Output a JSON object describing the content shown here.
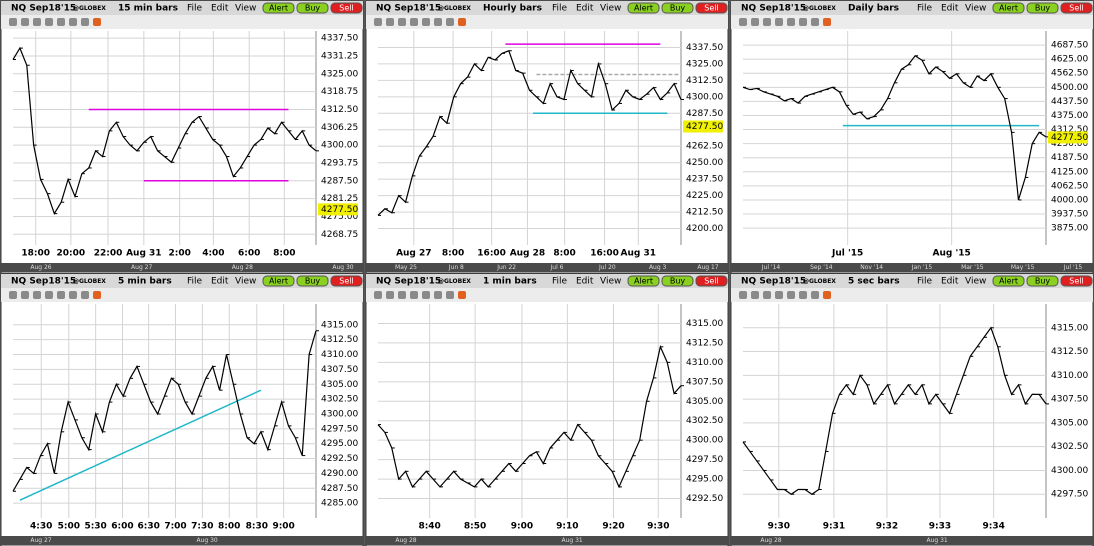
{
  "panels": [
    {
      "symbol": "NQ Sep18'15",
      "exchange": "@GLOBEX",
      "interval": "15 min bars",
      "menu": [
        "File",
        "Edit",
        "View"
      ],
      "buttons": [
        "Alert",
        "Buy",
        "Sell"
      ],
      "chart": {
        "type": "line",
        "color": "#000000",
        "xlim": [
          0,
          44
        ],
        "ylim": [
          4265,
          4340
        ],
        "yticks": [
          {
            "value": 4337.5,
            "label": "4337.50"
          },
          {
            "value": 4331.25,
            "label": "4331.25"
          },
          {
            "value": 4325,
            "label": "4325.00"
          },
          {
            "value": 4318.75,
            "label": "4318.75"
          },
          {
            "value": 4312.5,
            "label": "4312.50"
          },
          {
            "value": 4306.25,
            "label": "4306.25"
          },
          {
            "value": 4300,
            "label": "4300.00"
          },
          {
            "value": 4293.75,
            "label": "4293.75"
          },
          {
            "value": 4287.5,
            "label": "4287.50"
          },
          {
            "value": 4281.25,
            "label": "4281.25"
          },
          {
            "value": 4275,
            "label": "4275.00"
          },
          {
            "value": 4268.75,
            "label": "4268.75"
          }
        ],
        "xticks": [
          {
            "value": 3.3,
            "label": "18:00"
          },
          {
            "value": 8.4,
            "label": "20:00"
          },
          {
            "value": 13.8,
            "label": "22:00"
          },
          {
            "value": 19,
            "label": "Aug 31"
          },
          {
            "value": 24.2,
            "label": "2:00"
          },
          {
            "value": 29.1,
            "label": "4:00"
          },
          {
            "value": 34.3,
            "label": "6:00"
          },
          {
            "value": 39.4,
            "label": "8:00"
          }
        ],
        "values": [
          4330,
          4334,
          4328,
          4300,
          4288,
          4283,
          4276,
          4280,
          4288,
          4282,
          4290,
          4292,
          4298,
          4296,
          4305,
          4308,
          4303,
          4300,
          4298,
          4301,
          4303,
          4298,
          4296,
          4294,
          4299,
          4304,
          4308,
          4310,
          4306,
          4302,
          4300,
          4296,
          4289,
          4292,
          4296,
          4300,
          4302,
          4306,
          4304,
          4308,
          4305,
          4302,
          4305,
          4300,
          4298
        ],
        "price_label": {
          "value": 4277.5,
          "label": "4277.50"
        },
        "lines": [
          {
            "color": "#e000e0",
            "points": [
              [
                11,
                4312.5
              ],
              [
                40,
                4312.5
              ]
            ]
          },
          {
            "color": "#e000e0",
            "points": [
              [
                19,
                4287.5
              ],
              [
                40,
                4287.5
              ]
            ]
          }
        ],
        "scroll_labels": [
          "Aug 26",
          "Aug 27",
          "Aug 28",
          "Aug 30"
        ]
      }
    },
    {
      "symbol": "NQ Sep18'15",
      "exchange": "@GLOBEX",
      "interval": "Hourly bars",
      "menu": [
        "File",
        "Edit",
        "View"
      ],
      "buttons": [
        "Alert",
        "Buy",
        "Sell"
      ],
      "chart": {
        "type": "line",
        "color": "#000000",
        "xlim": [
          0,
          44
        ],
        "ylim": [
          4187.5,
          4350
        ],
        "yticks": [
          {
            "value": 4337.5,
            "label": "4337.50"
          },
          {
            "value": 4325,
            "label": "4325.00"
          },
          {
            "value": 4312.5,
            "label": "4312.50"
          },
          {
            "value": 4300,
            "label": "4300.00"
          },
          {
            "value": 4287.5,
            "label": "4287.50"
          },
          {
            "value": 4275,
            "label": "4275.00"
          },
          {
            "value": 4262.5,
            "label": "4262.50"
          },
          {
            "value": 4250,
            "label": "4250.00"
          },
          {
            "value": 4237.5,
            "label": "4237.50"
          },
          {
            "value": 4225,
            "label": "4225.00"
          },
          {
            "value": 4212.5,
            "label": "4212.50"
          },
          {
            "value": 4200,
            "label": "4200.00"
          }
        ],
        "xticks": [
          {
            "value": 5.2,
            "label": "Aug 27"
          },
          {
            "value": 10.9,
            "label": "8:00"
          },
          {
            "value": 16.5,
            "label": "16:00"
          },
          {
            "value": 21.7,
            "label": "Aug 28"
          },
          {
            "value": 27.1,
            "label": "8:00"
          },
          {
            "value": 32.9,
            "label": "16:00"
          },
          {
            "value": 37.8,
            "label": "Aug 31"
          }
        ],
        "values": [
          4210,
          4215,
          4212,
          4225,
          4220,
          4240,
          4255,
          4262,
          4270,
          4285,
          4280,
          4300,
          4310,
          4315,
          4325,
          4320,
          4330,
          4328,
          4333,
          4335,
          4320,
          4318,
          4305,
          4300,
          4295,
          4310,
          4300,
          4298,
          4320,
          4310,
          4305,
          4300,
          4325,
          4310,
          4290,
          4295,
          4305,
          4300,
          4298,
          4302,
          4307,
          4298,
          4303,
          4310,
          4298
        ],
        "price_label": {
          "value": 4277.5,
          "label": "4277.50"
        },
        "lines": [
          {
            "color": "#e000e0",
            "points": [
              [
                18.5,
                4340
              ],
              [
                41,
                4340
              ]
            ]
          },
          {
            "color": "#aaaaaa",
            "dashed": true,
            "points": [
              [
                23,
                4317
              ],
              [
                44,
                4317
              ]
            ]
          },
          {
            "color": "#20b8c8",
            "points": [
              [
                22.5,
                4287.5
              ],
              [
                42,
                4287.5
              ]
            ]
          }
        ],
        "scroll_labels": [
          "May 25",
          "Jun 8",
          "Jun 22",
          "Jul 6",
          "Jul 20",
          "Aug 3",
          "Aug 17"
        ]
      }
    },
    {
      "symbol": "NQ Sep18'15",
      "exchange": "@GLOBEX",
      "interval": "Daily bars",
      "menu": [
        "File",
        "Edit",
        "View"
      ],
      "buttons": [
        "Alert",
        "Buy",
        "Sell"
      ],
      "chart": {
        "type": "line",
        "color": "#000000",
        "xlim": [
          0,
          44
        ],
        "ylim": [
          3800,
          4750
        ],
        "yticks": [
          {
            "value": 4687.5,
            "label": "4687.50"
          },
          {
            "value": 4625,
            "label": "4625.00"
          },
          {
            "value": 4562.5,
            "label": "4562.50"
          },
          {
            "value": 4500,
            "label": "4500.00"
          },
          {
            "value": 4437.5,
            "label": "4437.50"
          },
          {
            "value": 4375,
            "label": "4375.00"
          },
          {
            "value": 4312.5,
            "label": "4312.50"
          },
          {
            "value": 4250,
            "label": "4250.00"
          },
          {
            "value": 4187.5,
            "label": "4187.50"
          },
          {
            "value": 4125,
            "label": "4125.00"
          },
          {
            "value": 4062.5,
            "label": "4062.50"
          },
          {
            "value": 4000,
            "label": "4000.00"
          },
          {
            "value": 3937.5,
            "label": "3937.50"
          },
          {
            "value": 3875,
            "label": "3875.00"
          }
        ],
        "xticks": [
          {
            "value": 15.2,
            "label": "Jul '15"
          },
          {
            "value": 30.3,
            "label": "Aug '15"
          }
        ],
        "values": [
          4500,
          4490,
          4495,
          4480,
          4470,
          4460,
          4440,
          4450,
          4430,
          4460,
          4470,
          4480,
          4490,
          4500,
          4480,
          4420,
          4380,
          4390,
          4360,
          4370,
          4400,
          4450,
          4520,
          4580,
          4600,
          4640,
          4620,
          4560,
          4590,
          4570,
          4540,
          4560,
          4520,
          4500,
          4550,
          4530,
          4560,
          4500,
          4450,
          4300,
          4000,
          4100,
          4250,
          4300,
          4280
        ],
        "price_label": {
          "value": 4277.5,
          "label": "4277.50"
        },
        "lines": [
          {
            "color": "#20b8c8",
            "points": [
              [
                14.5,
                4330
              ],
              [
                43,
                4330
              ]
            ]
          }
        ],
        "scroll_labels": [
          "Jul '14",
          "Sep '14",
          "Nov '14",
          "Jan '15",
          "Mar '15",
          "May '15",
          "Jul '15"
        ]
      }
    },
    {
      "symbol": "NQ Sep18'15",
      "exchange": "@GLOBEX",
      "interval": "5 min bars",
      "menu": [
        "File",
        "Edit",
        "View"
      ],
      "buttons": [
        "Alert",
        "Buy",
        "Sell"
      ],
      "chart": {
        "type": "line",
        "color": "#000000",
        "xlim": [
          0,
          44
        ],
        "ylim": [
          4282.5,
          4318.5
        ],
        "yticks": [
          {
            "value": 4315,
            "label": "4315.00"
          },
          {
            "value": 4312.5,
            "label": "4312.50"
          },
          {
            "value": 4310,
            "label": "4310.00"
          },
          {
            "value": 4307.5,
            "label": "4307.50"
          },
          {
            "value": 4305,
            "label": "4305.00"
          },
          {
            "value": 4302.5,
            "label": "4302.50"
          },
          {
            "value": 4300,
            "label": "4300.00"
          },
          {
            "value": 4297.5,
            "label": "4297.50"
          },
          {
            "value": 4295,
            "label": "4295.00"
          },
          {
            "value": 4292.5,
            "label": "4292.50"
          },
          {
            "value": 4290,
            "label": "4290.00"
          },
          {
            "value": 4287.5,
            "label": "4287.50"
          },
          {
            "value": 4285,
            "label": "4285.00"
          }
        ],
        "xticks": [
          {
            "value": 4.1,
            "label": "4:30"
          },
          {
            "value": 8.1,
            "label": "5:00"
          },
          {
            "value": 12,
            "label": "5:30"
          },
          {
            "value": 15.9,
            "label": "6:00"
          },
          {
            "value": 19.7,
            "label": "6:30"
          },
          {
            "value": 23.6,
            "label": "7:00"
          },
          {
            "value": 27.5,
            "label": "7:30"
          },
          {
            "value": 31.4,
            "label": "8:00"
          },
          {
            "value": 35.4,
            "label": "8:30"
          },
          {
            "value": 39.3,
            "label": "9:00"
          }
        ],
        "values": [
          4287,
          4289,
          4291,
          4290,
          4293,
          4295,
          4290,
          4297,
          4302,
          4299,
          4296,
          4294,
          4300,
          4297,
          4302,
          4305,
          4303,
          4306,
          4308,
          4305,
          4302,
          4300,
          4303,
          4306,
          4305,
          4302,
          4300,
          4303,
          4306,
          4308,
          4304,
          4310,
          4305,
          4300,
          4296,
          4295,
          4297,
          4294,
          4298,
          4302,
          4298,
          4296,
          4293,
          4310,
          4314
        ],
        "lines": [
          {
            "color": "#20b8c8",
            "points": [
              [
                1,
                4285.5
              ],
              [
                36,
                4304
              ]
            ]
          }
        ],
        "scroll_labels": [
          "Aug 27",
          "Aug 30"
        ]
      }
    },
    {
      "symbol": "NQ Sep18'15",
      "exchange": "@GLOBEX",
      "interval": "1 min bars",
      "menu": [
        "File",
        "Edit",
        "View"
      ],
      "buttons": [
        "Alert",
        "Buy",
        "Sell"
      ],
      "chart": {
        "type": "line",
        "color": "#000000",
        "xlim": [
          0,
          44
        ],
        "ylim": [
          4290,
          4317.5
        ],
        "yticks": [
          {
            "value": 4315,
            "label": "4315.00"
          },
          {
            "value": 4312.5,
            "label": "4312.50"
          },
          {
            "value": 4310,
            "label": "4310.00"
          },
          {
            "value": 4307.5,
            "label": "4307.50"
          },
          {
            "value": 4305,
            "label": "4305.00"
          },
          {
            "value": 4302.5,
            "label": "4302.50"
          },
          {
            "value": 4300,
            "label": "4300.00"
          },
          {
            "value": 4297.5,
            "label": "4297.50"
          },
          {
            "value": 4295,
            "label": "4295.00"
          },
          {
            "value": 4292.5,
            "label": "4292.50"
          }
        ],
        "xticks": [
          {
            "value": 7.5,
            "label": "8:40"
          },
          {
            "value": 14.1,
            "label": "8:50"
          },
          {
            "value": 20.9,
            "label": "9:00"
          },
          {
            "value": 27.5,
            "label": "9:10"
          },
          {
            "value": 34.2,
            "label": "9:20"
          },
          {
            "value": 40.7,
            "label": "9:30"
          }
        ],
        "values": [
          4302,
          4301,
          4299,
          4295,
          4296,
          4294,
          4295,
          4296,
          4295,
          4294,
          4295,
          4296,
          4295,
          4294.5,
          4294,
          4295,
          4294,
          4295,
          4296,
          4297,
          4296,
          4297,
          4298,
          4298.5,
          4297,
          4299,
          4300,
          4301,
          4300,
          4302,
          4301,
          4300,
          4298,
          4297,
          4296,
          4294,
          4296,
          4298,
          4300,
          4305,
          4308,
          4312,
          4310,
          4306,
          4307
        ],
        "lines": [],
        "scroll_labels": [
          "Aug 28",
          "Aug 31"
        ]
      }
    },
    {
      "symbol": "NQ Sep18'15",
      "exchange": "@GLOBEX",
      "interval": "5 sec bars",
      "menu": [
        "File",
        "Edit",
        "View"
      ],
      "buttons": [
        "Alert",
        "Buy",
        "Sell"
      ],
      "chart": {
        "type": "line",
        "color": "#000000",
        "xlim": [
          0,
          44
        ],
        "ylim": [
          4295,
          4317.5
        ],
        "yticks": [
          {
            "value": 4315,
            "label": "4315.00"
          },
          {
            "value": 4312.5,
            "label": "4312.50"
          },
          {
            "value": 4310,
            "label": "4310.00"
          },
          {
            "value": 4307.5,
            "label": "4307.50"
          },
          {
            "value": 4305,
            "label": "4305.00"
          },
          {
            "value": 4302.5,
            "label": "4302.50"
          },
          {
            "value": 4300,
            "label": "4300.00"
          },
          {
            "value": 4297.5,
            "label": "4297.50"
          }
        ],
        "xticks": [
          {
            "value": 5.2,
            "label": "9:30"
          },
          {
            "value": 13.2,
            "label": "9:31"
          },
          {
            "value": 20.9,
            "label": "9:32"
          },
          {
            "value": 28.6,
            "label": "9:33"
          },
          {
            "value": 36.4,
            "label": "9:34"
          }
        ],
        "values": [
          4303,
          4302,
          4301,
          4300,
          4299,
          4298,
          4298,
          4297.5,
          4298,
          4298,
          4297.5,
          4298,
          4302,
          4306,
          4308,
          4309,
          4308,
          4310,
          4309,
          4307,
          4308,
          4309,
          4307,
          4308,
          4309,
          4308,
          4309,
          4307,
          4308,
          4307,
          4306,
          4308,
          4310,
          4312,
          4313,
          4314,
          4315,
          4313,
          4310,
          4308,
          4309,
          4307,
          4308,
          4308,
          4307
        ],
        "lines": [],
        "scroll_labels": [
          "Aug 28",
          "Aug 31"
        ]
      }
    }
  ]
}
